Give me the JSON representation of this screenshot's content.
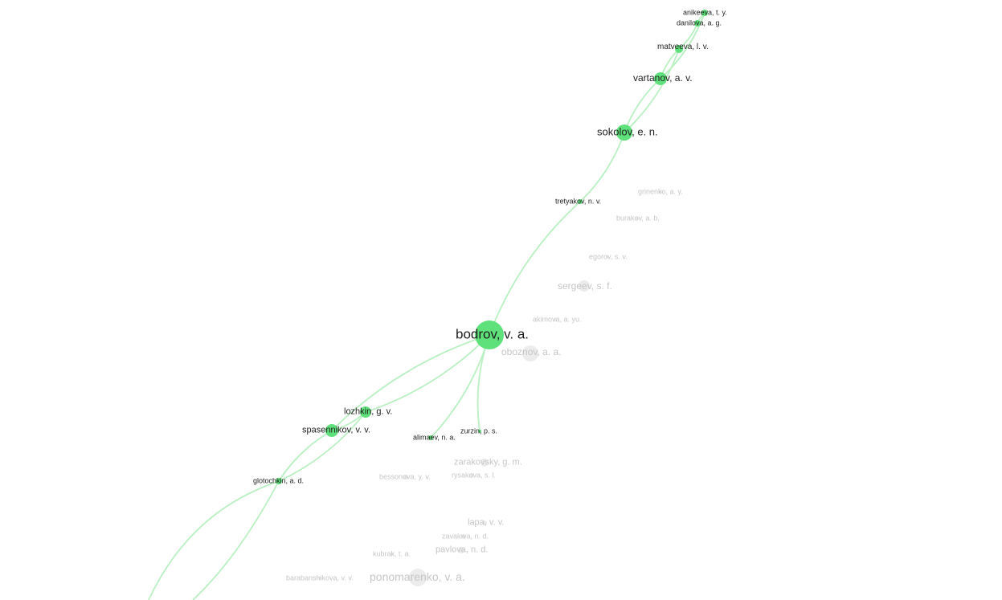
{
  "colors": {
    "background": "#ffffff",
    "highlight_node": "#5ee07a",
    "highlight_edge": "#b9f0c2",
    "dim_node": "#ececec",
    "dim_label": "#c6c6c6",
    "active_label": "#1e1e1e"
  },
  "network": {
    "nodes": [
      {
        "id": "anikeeva",
        "label": "anikeeva, t. y.",
        "state": "highlighted"
      },
      {
        "id": "danilova",
        "label": "danilova, a. g.",
        "state": "highlighted"
      },
      {
        "id": "matveeva",
        "label": "matveeva, l. v.",
        "state": "highlighted"
      },
      {
        "id": "vartanov",
        "label": "vartanov, a. v.",
        "state": "highlighted"
      },
      {
        "id": "sokolov",
        "label": "sokolov, e. n.",
        "state": "highlighted"
      },
      {
        "id": "tretyakov",
        "label": "tretyakov, n. v.",
        "state": "highlighted"
      },
      {
        "id": "bodrov",
        "label": "bodrov, v. a.",
        "state": "selected"
      },
      {
        "id": "lozhkin",
        "label": "lozhkin, g. v.",
        "state": "highlighted"
      },
      {
        "id": "spasennikov",
        "label": "spasennikov, v. v.",
        "state": "highlighted"
      },
      {
        "id": "alimaev",
        "label": "alimaev, n. a.",
        "state": "highlighted"
      },
      {
        "id": "zurzin",
        "label": "zurzin, p. s.",
        "state": "highlighted"
      },
      {
        "id": "glotochkin",
        "label": "glotochkin, a. d.",
        "state": "highlighted"
      },
      {
        "id": "grinenko",
        "label": "grinenko, a. y.",
        "state": "dimmed"
      },
      {
        "id": "burakov",
        "label": "burakov, a. b.",
        "state": "dimmed"
      },
      {
        "id": "egorov",
        "label": "egorov, s. v.",
        "state": "dimmed"
      },
      {
        "id": "sergeev",
        "label": "sergeev, s. f.",
        "state": "dimmed"
      },
      {
        "id": "akimova",
        "label": "akimova, a. yu.",
        "state": "dimmed"
      },
      {
        "id": "oboznov",
        "label": "oboznov, a. a.",
        "state": "dimmed"
      },
      {
        "id": "zarakovsky",
        "label": "zarakovsky, g. m.",
        "state": "dimmed"
      },
      {
        "id": "bessonova",
        "label": "bessonova, y. v.",
        "state": "dimmed"
      },
      {
        "id": "rysakova",
        "label": "rysakova, s. l.",
        "state": "dimmed"
      },
      {
        "id": "lapa",
        "label": "lapa, v. v.",
        "state": "dimmed"
      },
      {
        "id": "zavalova",
        "label": "zavalova, n. d.",
        "state": "dimmed"
      },
      {
        "id": "pavlova",
        "label": "pavlova, n. d.",
        "state": "dimmed"
      },
      {
        "id": "kubrak",
        "label": "kubrak, t. a.",
        "state": "dimmed"
      },
      {
        "id": "ponomarenko",
        "label": "ponomarenko, v. a.",
        "state": "dimmed"
      },
      {
        "id": "barabanshikova",
        "label": "barabanshikova, v. v.",
        "state": "dimmed"
      }
    ],
    "edges": [
      [
        "bodrov",
        "tretyakov"
      ],
      [
        "tretyakov",
        "sokolov"
      ],
      [
        "sokolov",
        "vartanov"
      ],
      [
        "sokolov",
        "matveeva"
      ],
      [
        "vartanov",
        "matveeva"
      ],
      [
        "matveeva",
        "danilova"
      ],
      [
        "danilova",
        "anikeeva"
      ],
      [
        "vartanov",
        "anikeeva"
      ],
      [
        "bodrov",
        "lozhkin"
      ],
      [
        "bodrov",
        "spasennikov"
      ],
      [
        "bodrov",
        "alimaev"
      ],
      [
        "bodrov",
        "zurzin"
      ],
      [
        "lozhkin",
        "spasennikov"
      ],
      [
        "spasennikov",
        "glotochkin"
      ],
      [
        "lozhkin",
        "glotochkin"
      ]
    ]
  }
}
